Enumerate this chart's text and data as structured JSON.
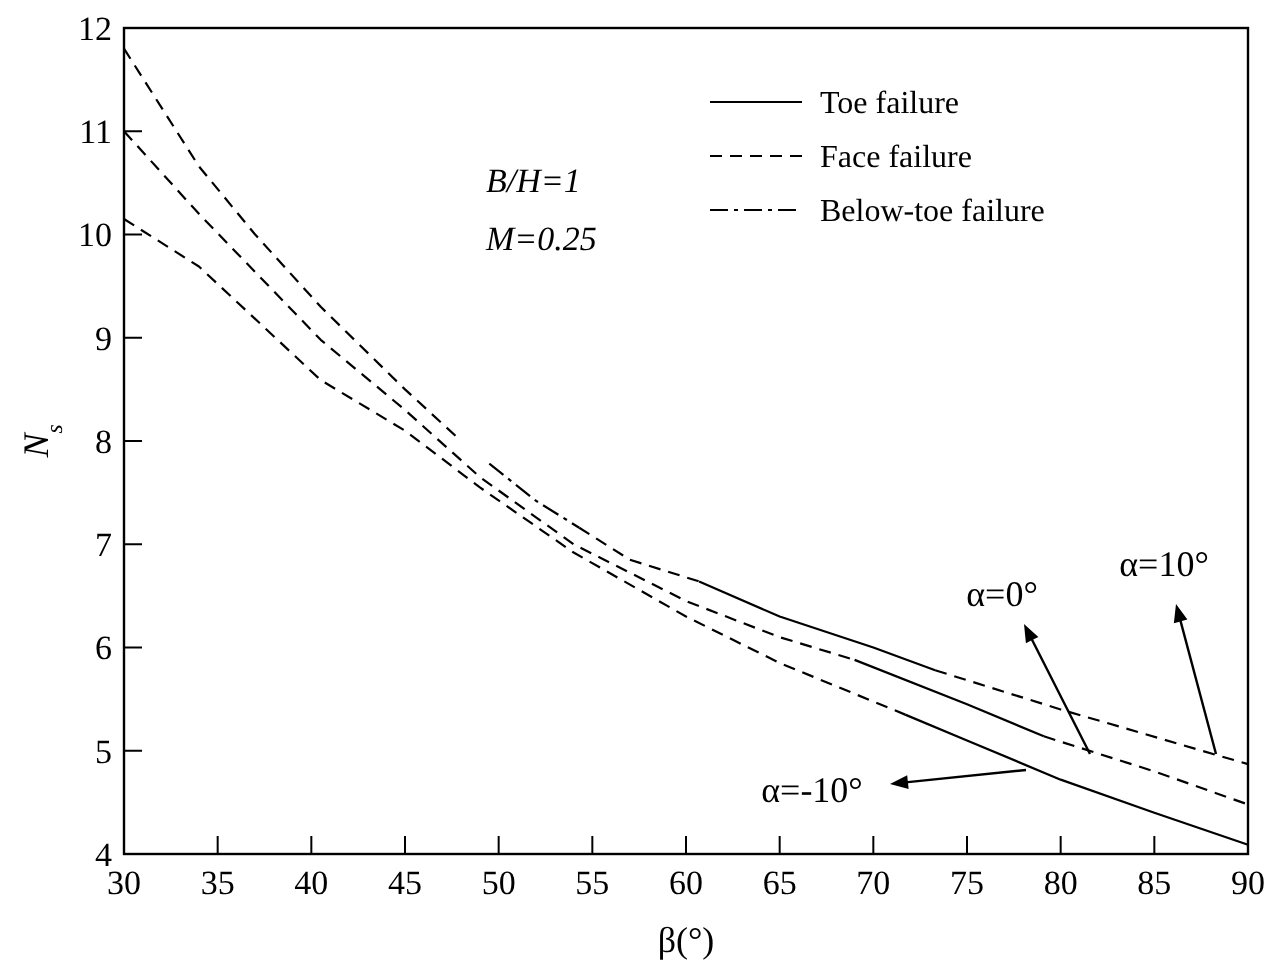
{
  "chart_data": {
    "type": "line",
    "xlabel": "β(°)",
    "ylabel": "N$_{s}$",
    "xlim": [
      30,
      90
    ],
    "ylim": [
      4,
      12
    ],
    "xticks": [
      30,
      35,
      40,
      45,
      50,
      55,
      60,
      65,
      70,
      75,
      80,
      85,
      90
    ],
    "yticks": [
      4,
      5,
      6,
      7,
      8,
      9,
      10,
      11,
      12
    ],
    "grid": false,
    "legend": "top right",
    "marker": "none",
    "series": [
      {
        "name": "Toe failure",
        "color": "#000000",
        "line_style": "solid",
        "x": [
          60.7,
          65,
          70,
          73.3,
          null,
          69,
          75,
          79.1,
          null,
          71.7,
          75,
          80,
          85,
          90
        ],
        "values": [
          6.64,
          6.3,
          6.0,
          5.78,
          null,
          5.88,
          5.45,
          5.14,
          null,
          5.35,
          5.1,
          4.72,
          4.4,
          4.09
        ]
      },
      {
        "name": "Face failure",
        "color": "#000000",
        "line_style": "dashed",
        "x": [
          30,
          34,
          37,
          40.5,
          45,
          48,
          null,
          30,
          34,
          40.5,
          45,
          49,
          54,
          60,
          65,
          69,
          null,
          30,
          34,
          40.5,
          45,
          49,
          54,
          60,
          65,
          71.7,
          null,
          54.3,
          57,
          60.7,
          null,
          73.3,
          80,
          90,
          null,
          79.1,
          85,
          90
        ],
        "values": [
          11.8,
          10.66,
          10.0,
          9.3,
          8.5,
          8.0,
          null,
          11.0,
          10.2,
          8.98,
          8.3,
          7.65,
          7.0,
          6.45,
          6.1,
          5.88,
          null,
          10.15,
          9.69,
          8.59,
          8.1,
          7.55,
          6.92,
          6.3,
          5.85,
          5.35,
          null,
          7.16,
          6.85,
          6.64,
          null,
          5.78,
          5.4,
          4.87,
          null,
          5.14,
          4.8,
          4.48
        ]
      },
      {
        "name": "Below-toe failure",
        "color": "#000000",
        "line_style": "dashdot",
        "x": [
          49.5,
          52,
          54.3
        ],
        "values": [
          7.78,
          7.42,
          7.16
        ]
      }
    ],
    "annotations": [
      "B/H=1",
      "M=0.25",
      "α=0°",
      "α=10°",
      "α=-10°"
    ]
  }
}
